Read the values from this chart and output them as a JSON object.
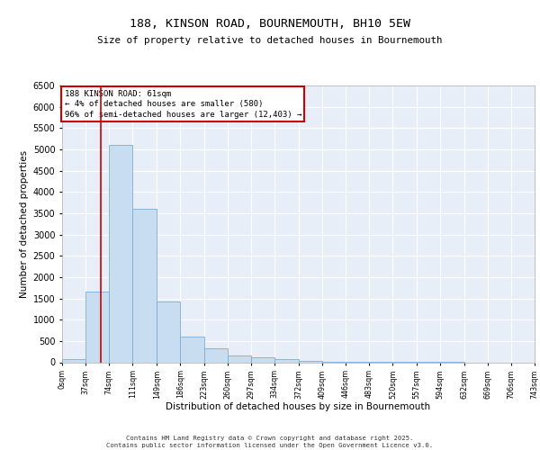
{
  "title": "188, KINSON ROAD, BOURNEMOUTH, BH10 5EW",
  "subtitle": "Size of property relative to detached houses in Bournemouth",
  "xlabel": "Distribution of detached houses by size in Bournemouth",
  "ylabel": "Number of detached properties",
  "annotation_line1": "188 KINSON ROAD: 61sqm",
  "annotation_line2": "← 4% of detached houses are smaller (580)",
  "annotation_line3": "96% of semi-detached houses are larger (12,403) →",
  "bin_edges": [
    0,
    37,
    74,
    111,
    149,
    186,
    223,
    260,
    297,
    334,
    372,
    409,
    446,
    483,
    520,
    557,
    594,
    632,
    669,
    706,
    743
  ],
  "bar_heights": [
    70,
    1660,
    5100,
    3600,
    1420,
    610,
    320,
    160,
    120,
    70,
    30,
    10,
    5,
    3,
    2,
    1,
    1,
    0,
    0,
    0
  ],
  "bar_color": "#c9ddf0",
  "bar_edge_color": "#7aadd4",
  "red_line_x": 61,
  "annotation_box_color": "#cc0000",
  "background_color": "#e8eef8",
  "grid_color": "#ffffff",
  "ylim": [
    0,
    6500
  ],
  "yticks": [
    0,
    500,
    1000,
    1500,
    2000,
    2500,
    3000,
    3500,
    4000,
    4500,
    5000,
    5500,
    6000,
    6500
  ],
  "footer_line1": "Contains HM Land Registry data © Crown copyright and database right 2025.",
  "footer_line2": "Contains public sector information licensed under the Open Government Licence v3.0."
}
